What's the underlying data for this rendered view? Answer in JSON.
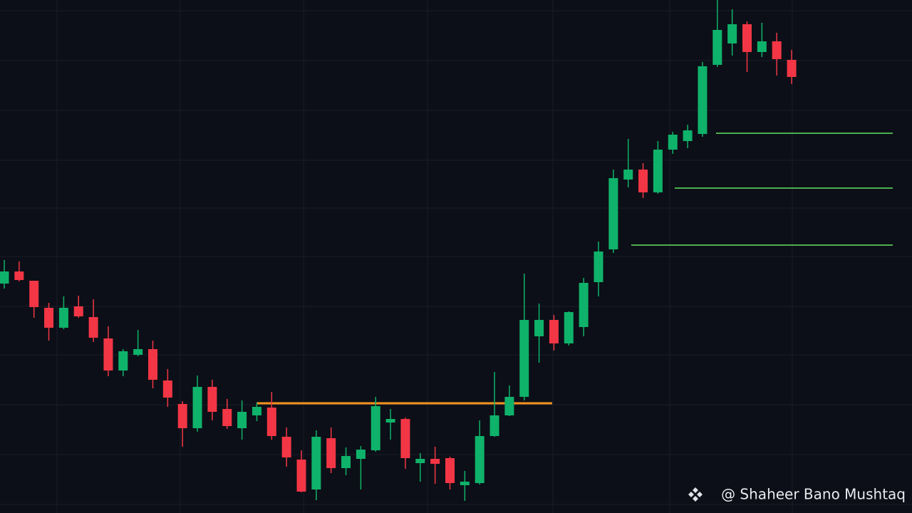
{
  "chart_data": {
    "type": "candlestick",
    "ylim": [
      0,
      720
    ],
    "up_color": "#0fb26a",
    "down_color": "#f23645",
    "open": [
      322,
      339,
      326,
      288,
      260,
      290,
      275,
      245,
      200,
      222,
      230,
      186,
      153,
      119,
      177,
      146,
      119,
      137,
      148,
      107,
      75,
      33,
      105,
      63,
      76,
      88,
      127,
      132,
      70,
      76,
      77,
      39,
      42,
      108,
      137,
      163,
      248,
      271,
      238,
      261,
      324,
      370,
      468,
      482,
      450,
      510,
      522,
      532,
      629,
      659,
      686,
      647,
      662,
      636
    ],
    "high": [
      355,
      353,
      326,
      295,
      304,
      305,
      300,
      262,
      230,
      257,
      242,
      202,
      157,
      193,
      187,
      160,
      158,
      155,
      170,
      120,
      88,
      116,
      120,
      92,
      94,
      163,
      146,
      134,
      84,
      93,
      79,
      59,
      130,
      198,
      179,
      336,
      294,
      278,
      283,
      330,
      381,
      482,
      525,
      491,
      522,
      535,
      545,
      633,
      720,
      707,
      690,
      688,
      674,
      650
    ],
    "low": [
      315,
      325,
      274,
      242,
      258,
      274,
      240,
      192,
      192,
      220,
      175,
      149,
      93,
      114,
      130,
      118,
      103,
      129,
      103,
      65,
      29,
      18,
      56,
      53,
      33,
      86,
      103,
      62,
      44,
      41,
      33,
      17,
      40,
      107,
      136,
      158,
      211,
      228,
      235,
      248,
      304,
      365,
      457,
      442,
      448,
      504,
      512,
      528,
      626,
      642,
      619,
      640,
      614,
      602
    ],
    "close": [
      339,
      327,
      289,
      260,
      288,
      276,
      246,
      200,
      227,
      230,
      187,
      162,
      119,
      177,
      142,
      122,
      142,
      149,
      108,
      78,
      30,
      107,
      63,
      80,
      89,
      150,
      132,
      77,
      76,
      69,
      42,
      44,
      108,
      137,
      163,
      271,
      271,
      238,
      282,
      323,
      367,
      470,
      482,
      450,
      510,
      531,
      537,
      627,
      678,
      686,
      647,
      662,
      637,
      612
    ],
    "levels": [
      {
        "value": 154,
        "color": "#f7931e"
      },
      {
        "value": 533,
        "color": "#4caf50"
      },
      {
        "value": 456,
        "color": "#4caf50"
      },
      {
        "value": 376,
        "color": "#4caf50"
      }
    ],
    "watermark": "@ Shaheer Bano Mushtaq"
  }
}
